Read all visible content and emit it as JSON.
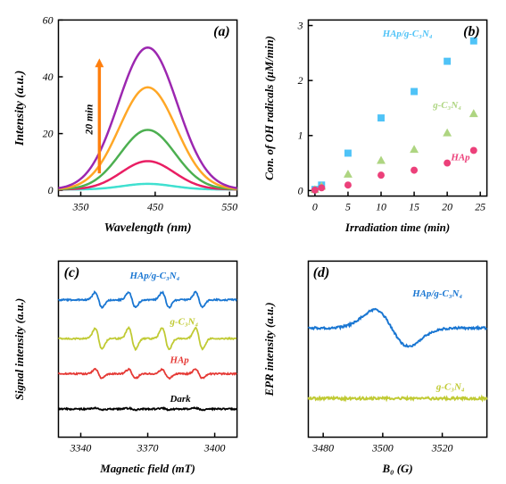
{
  "panel_a": {
    "letter": "(a)",
    "type": "line",
    "xlabel": "Wavelength (nm)",
    "ylabel": "Intensity (a.u.)",
    "xlim": [
      320,
      560
    ],
    "ylim": [
      -2,
      60
    ],
    "xticks": [
      350,
      450,
      550
    ],
    "yticks": [
      0,
      20,
      40,
      60
    ],
    "arrow_label": "20 min",
    "arrow_color": "#ff7f0e",
    "label_fontsize": 14,
    "tick_fontsize": 12,
    "border_color": "#000000",
    "series": [
      {
        "color": "#40e0d0",
        "peak": 2,
        "width": 48
      },
      {
        "color": "#e91e63",
        "peak": 10,
        "width": 50
      },
      {
        "color": "#4caf50",
        "peak": 21,
        "width": 52
      },
      {
        "color": "#ffa726",
        "peak": 36,
        "width": 54
      },
      {
        "color": "#9c27b0",
        "peak": 50,
        "width": 56
      }
    ],
    "peak_center": 440
  },
  "panel_b": {
    "letter": "(b)",
    "type": "scatter",
    "xlabel": "Irradiation time (min)",
    "ylabel": "Con. of OH radicals (μM/min)",
    "xlim": [
      -1,
      26
    ],
    "ylim": [
      -0.1,
      3.1
    ],
    "xticks": [
      0,
      5,
      10,
      15,
      20,
      25
    ],
    "yticks": [
      0,
      1,
      2,
      3
    ],
    "label_fontsize": 13,
    "tick_fontsize": 12,
    "series": [
      {
        "label": "HAp/g-C₃N₄",
        "color": "#4fc3f7",
        "marker": "square",
        "data": [
          [
            0,
            0.02
          ],
          [
            1,
            0.1
          ],
          [
            5,
            0.68
          ],
          [
            10,
            1.32
          ],
          [
            15,
            1.8
          ],
          [
            20,
            2.35
          ],
          [
            24,
            2.72
          ]
        ],
        "label_pos": [
          14,
          2.8
        ]
      },
      {
        "label": "g-C₃N₄",
        "color": "#aed581",
        "marker": "triangle",
        "data": [
          [
            0,
            0.02
          ],
          [
            1,
            0.08
          ],
          [
            5,
            0.3
          ],
          [
            10,
            0.55
          ],
          [
            15,
            0.75
          ],
          [
            20,
            1.05
          ],
          [
            24,
            1.4
          ]
        ],
        "label_pos": [
          20,
          1.5
        ]
      },
      {
        "label": "HAp",
        "color": "#ec407a",
        "marker": "circle",
        "data": [
          [
            0,
            0.01
          ],
          [
            1,
            0.05
          ],
          [
            5,
            0.1
          ],
          [
            10,
            0.28
          ],
          [
            15,
            0.37
          ],
          [
            20,
            0.5
          ],
          [
            24,
            0.73
          ]
        ],
        "label_pos": [
          22,
          0.55
        ]
      }
    ]
  },
  "panel_c": {
    "letter": "(c)",
    "type": "line",
    "xlabel": "Magnetic field (mT)",
    "ylabel": "Signal intensity (a.u.)",
    "xlim": [
      3330,
      3410
    ],
    "ylim": [
      0,
      100
    ],
    "xticks": [
      3340,
      3370,
      3400
    ],
    "label_fontsize": 13,
    "tick_fontsize": 12,
    "traces": [
      {
        "label": "HAp/g-C₃N₄",
        "color": "#1976d2",
        "offset": 78,
        "amplitude": 10,
        "label_pos": [
          3362,
          90
        ]
      },
      {
        "label": "g-C₃N₄",
        "color": "#c0ca33",
        "offset": 56,
        "amplitude": 14,
        "label_pos": [
          3380,
          64
        ]
      },
      {
        "label": "HAp",
        "color": "#e53935",
        "offset": 36,
        "amplitude": 6,
        "label_pos": [
          3380,
          42
        ]
      },
      {
        "label": "Dark",
        "color": "#000000",
        "offset": 16,
        "amplitude": 1.2,
        "label_pos": [
          3380,
          20
        ]
      }
    ],
    "peak_positions": [
      3348,
      3363,
      3378,
      3393
    ]
  },
  "panel_d": {
    "letter": "(d)",
    "type": "line",
    "xlabel": "B₀ (G)",
    "ylabel": "EPR intensity (a.u.)",
    "xlim": [
      3475,
      3535
    ],
    "ylim": [
      0,
      100
    ],
    "xticks": [
      3480,
      3500,
      3520
    ],
    "label_fontsize": 13,
    "tick_fontsize": 12,
    "traces": [
      {
        "label": "HAp/g-C₃N₄",
        "color": "#1976d2",
        "offset": 62,
        "type": "epr",
        "amplitude": 24,
        "center": 3503,
        "width": 8,
        "label_pos": [
          3510,
          80
        ]
      },
      {
        "label": "g-C₃N₄",
        "color": "#c0ca33",
        "offset": 22,
        "type": "flat",
        "amplitude": 1.5,
        "label_pos": [
          3518,
          27
        ]
      }
    ]
  }
}
